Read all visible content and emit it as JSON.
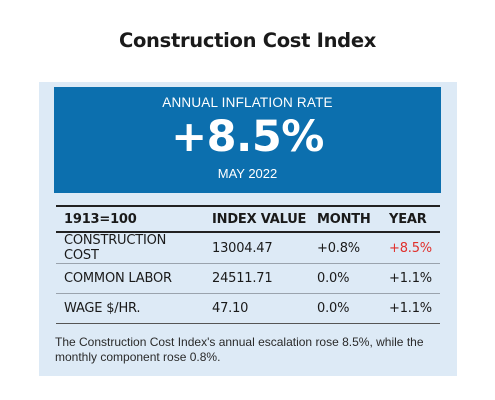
{
  "title": "Construction Cost Index",
  "hero": {
    "label": "ANNUAL INFLATION RATE",
    "value": "+8.5%",
    "date": "MAY 2022"
  },
  "table": {
    "headers": [
      "1913=100",
      "INDEX VALUE",
      "MONTH",
      "YEAR"
    ],
    "rows": [
      {
        "name": "CONSTRUCTION COST",
        "index": "13004.47",
        "month": "+0.8%",
        "year": "+8.5%"
      },
      {
        "name": "COMMON LABOR",
        "index": "24511.71",
        "month": "0.0%",
        "year": "+1.1%"
      },
      {
        "name": "WAGE $/HR.",
        "index": "47.10",
        "month": "0.0%",
        "year": "+1.1%"
      }
    ]
  },
  "footnote": "The Construction Cost Index's annual escalation rose 8.5%, while the monthly component rose 0.8%.",
  "colors": {
    "hero_background": "#0c6fae",
    "panel_background": "#ddeaf6",
    "highlight_red": "#e0302c"
  }
}
